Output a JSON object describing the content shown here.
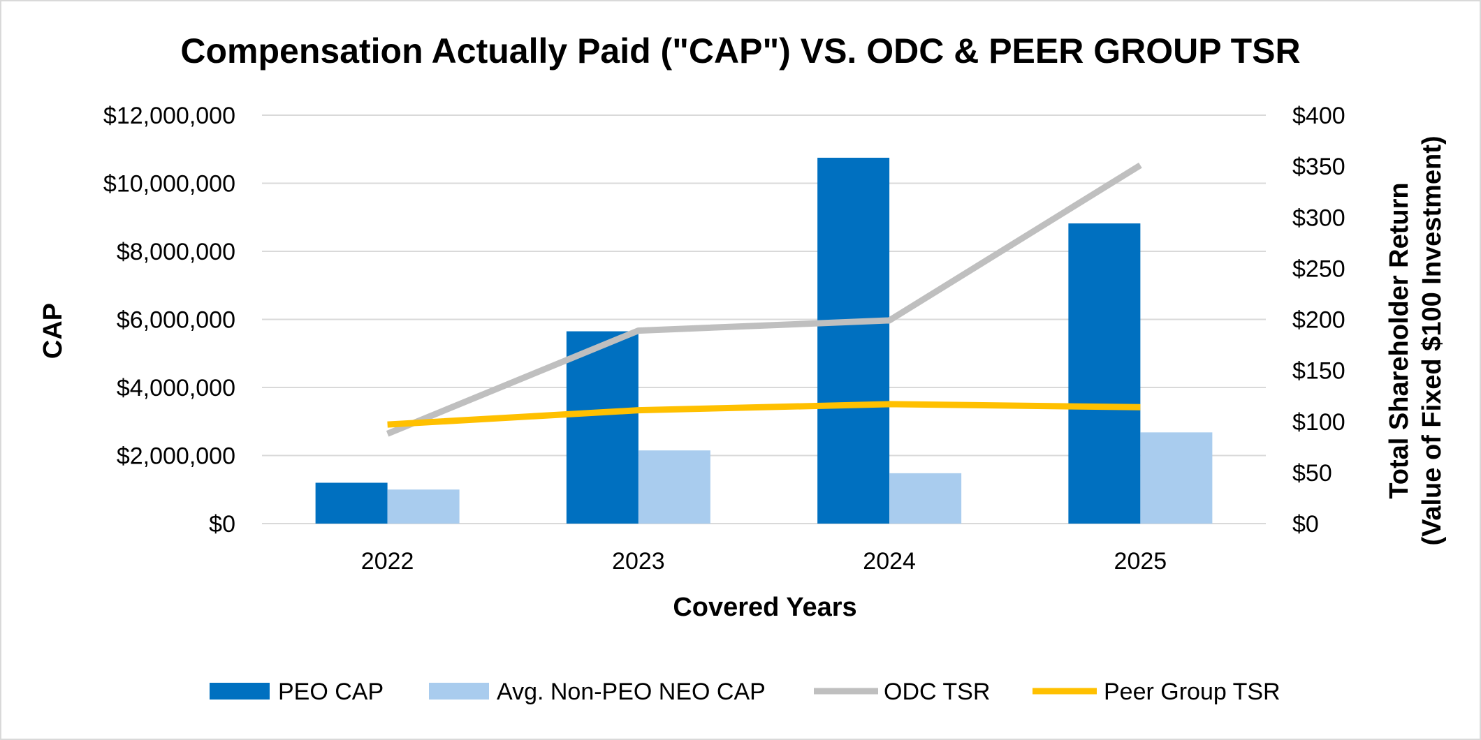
{
  "chart_data": {
    "type": "bar",
    "title": "Compensation Actually Paid (\"CAP\") VS. ODC & PEER GROUP TSR",
    "xlabel": "Covered Years",
    "ylabel": "CAP",
    "ylabel_right": [
      "Total  Shareholder Return",
      "(Value of Fixed $100 Investment)"
    ],
    "categories": [
      "2022",
      "2023",
      "2024",
      "2025"
    ],
    "ylim": [
      0,
      12000000
    ],
    "ylim_right": [
      0,
      400
    ],
    "y_ticks": [
      "$0",
      "$2,000,000",
      "$4,000,000",
      "$6,000,000",
      "$8,000,000",
      "$10,000,000",
      "$12,000,000"
    ],
    "y_ticks_right": [
      "$0",
      "$50",
      "$100",
      "$150",
      "$200",
      "$250",
      "$300",
      "$350",
      "$400"
    ],
    "grid": true,
    "legend_position": "bottom",
    "series": [
      {
        "name": "PEO CAP",
        "type": "bar",
        "axis": "left",
        "color": "#0070C0",
        "values": [
          1200000,
          5650000,
          10750000,
          8820000
        ]
      },
      {
        "name": "Avg. Non-PEO NEO CAP",
        "type": "bar",
        "axis": "left",
        "color": "#A9CCEE",
        "values": [
          1000000,
          2150000,
          1480000,
          2680000
        ]
      },
      {
        "name": "ODC TSR",
        "type": "line",
        "axis": "right",
        "color": "#BFBFBF",
        "values": [
          88,
          189,
          199,
          351
        ]
      },
      {
        "name": "Peer Group TSR",
        "type": "line",
        "axis": "right",
        "color": "#FFC000",
        "values": [
          97,
          111,
          117,
          114
        ]
      }
    ]
  }
}
